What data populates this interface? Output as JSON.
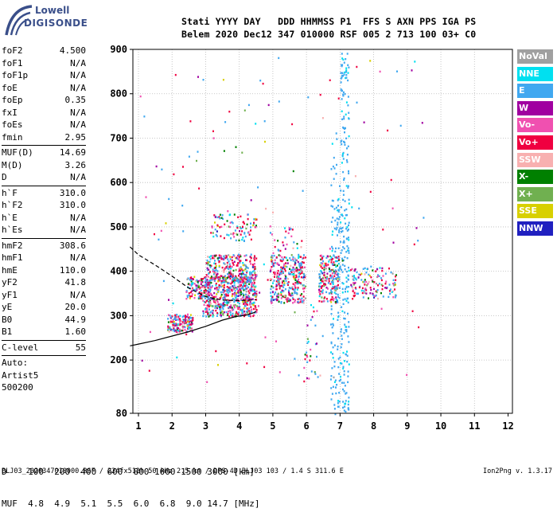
{
  "logo": {
    "line1": "Lowell",
    "line2": "DIGISONDE"
  },
  "header": {
    "line1": "Stati YYYY DAY   DDD HHMMSS P1  FFS S AXN PPS IGA PS",
    "line2": "Belem 2020 Dec12 347 010000 RSF 005 2 713 100 03+ C0"
  },
  "params_group1": [
    {
      "label": "foF2",
      "value": "4.500"
    },
    {
      "label": "foF1",
      "value": "N/A"
    },
    {
      "label": "foF1p",
      "value": "N/A"
    },
    {
      "label": "foE",
      "value": "N/A"
    },
    {
      "label": "foEp",
      "value": "0.35"
    },
    {
      "label": "fxI",
      "value": "N/A"
    },
    {
      "label": "foEs",
      "value": "N/A"
    },
    {
      "label": "fmin",
      "value": "2.95"
    }
  ],
  "params_group2": [
    {
      "label": "MUF(D)",
      "value": "14.69"
    },
    {
      "label": "M(D)",
      "value": "3.26"
    },
    {
      "label": "D",
      "value": "N/A"
    }
  ],
  "params_group3": [
    {
      "label": "h`F",
      "value": "310.0"
    },
    {
      "label": "h`F2",
      "value": "310.0"
    },
    {
      "label": "h`E",
      "value": "N/A"
    },
    {
      "label": "h`Es",
      "value": "N/A"
    }
  ],
  "params_group4": [
    {
      "label": "hmF2",
      "value": "308.6"
    },
    {
      "label": "hmF1",
      "value": "N/A"
    },
    {
      "label": "hmE",
      "value": "110.0"
    },
    {
      "label": "yF2",
      "value": "41.8"
    },
    {
      "label": "yF1",
      "value": "N/A"
    },
    {
      "label": "yE",
      "value": "20.0"
    },
    {
      "label": "B0",
      "value": "44.9"
    },
    {
      "label": "B1",
      "value": "1.60"
    }
  ],
  "params_group5": [
    {
      "label": "C-level",
      "value": "55"
    }
  ],
  "autoscaling": {
    "line1": "Auto:",
    "line2": "Artist5",
    "line3": "500200"
  },
  "legend": [
    {
      "label": "NoVal",
      "color": "#a0a0a0"
    },
    {
      "label": "NNE",
      "color": "#00e0f0"
    },
    {
      "label": "E",
      "color": "#40a8f0"
    },
    {
      "label": "W",
      "color": "#a000a0"
    },
    {
      "label": "Vo-",
      "color": "#f050b0"
    },
    {
      "label": "Vo+",
      "color": "#f00040"
    },
    {
      "label": "SSW",
      "color": "#f8b0b0"
    },
    {
      "label": "X-",
      "color": "#008000"
    },
    {
      "label": "X+",
      "color": "#70b050"
    },
    {
      "label": "SSE",
      "color": "#d8d000"
    },
    {
      "label": "NNW",
      "color": "#2020c0"
    }
  ],
  "distance_table": {
    "line1": "D    100  200  400  600  800 1000 1500 3000 [km]",
    "line2": "MUF  4.8  4.9  5.1  5.5  6.0  6.8  9.0 14.7 [MHz]"
  },
  "footer": {
    "left": "BLJ03_2020347010000.RSF / 224fx512h 50 kHz 2.5 km / DPS-4D BLJ03 103 / 1.4 S 311.6 E",
    "right": "Ion2Png v. 1.3.17"
  },
  "chart_data": {
    "type": "scatter",
    "title": "",
    "xlabel": "",
    "ylabel": "",
    "xlim": [
      0.75,
      12
    ],
    "ylim": [
      80,
      900
    ],
    "x_ticks": [
      1,
      2,
      3,
      4,
      5,
      6,
      7,
      8,
      9,
      10,
      11,
      12
    ],
    "y_ticks": [
      80,
      200,
      300,
      400,
      500,
      600,
      700,
      800,
      900
    ],
    "grid": "dotted",
    "legend_position": "right",
    "profile_line_solid": {
      "x": [
        0.75,
        1.0,
        1.5,
        2.0,
        2.5,
        3.0,
        3.5,
        3.9,
        4.2,
        4.45,
        4.5
      ],
      "y": [
        232,
        236,
        244,
        254,
        264,
        276,
        290,
        298,
        301,
        307,
        310
      ]
    },
    "profile_line_dashed": {
      "x": [
        0.75,
        1.0,
        1.5,
        2.0,
        2.5,
        3.0,
        3.5,
        4.0,
        4.3,
        4.5
      ],
      "y": [
        455,
        437,
        414,
        389,
        362,
        343,
        335,
        334,
        335,
        336
      ]
    },
    "echo_clusters": [
      {
        "x": [
          1.85,
          2.6
        ],
        "y": [
          265,
          305
        ],
        "n": 160
      },
      {
        "x": [
          2.4,
          2.9
        ],
        "y": [
          340,
          390
        ],
        "n": 90
      },
      {
        "x": [
          2.9,
          4.5
        ],
        "y": [
          300,
          390
        ],
        "n": 620
      },
      {
        "x": [
          3.0,
          4.5
        ],
        "y": [
          380,
          440
        ],
        "n": 260
      },
      {
        "x": [
          3.1,
          4.5
        ],
        "y": [
          470,
          530
        ],
        "n": 90
      },
      {
        "x": [
          4.9,
          5.95
        ],
        "y": [
          330,
          440
        ],
        "n": 300
      },
      {
        "x": [
          4.9,
          5.9
        ],
        "y": [
          370,
          510
        ],
        "n": 60
      },
      {
        "x": [
          6.35,
          6.95
        ],
        "y": [
          330,
          440
        ],
        "n": 180
      },
      {
        "x": [
          7.3,
          8.65
        ],
        "y": [
          340,
          410
        ],
        "n": 140
      },
      {
        "x": [
          7.0,
          7.25
        ],
        "y": [
          80,
          900
        ],
        "n": 220
      },
      {
        "x": [
          6.7,
          6.9
        ],
        "y": [
          80,
          720
        ],
        "n": 80
      },
      {
        "x": [
          6.9,
          7.0
        ],
        "y": [
          80,
          600
        ],
        "n": 50
      },
      {
        "x": [
          5.9,
          6.4
        ],
        "y": [
          150,
          330
        ],
        "n": 30
      },
      {
        "x": [
          1.0,
          9.5
        ],
        "y": [
          150,
          900
        ],
        "n": 130
      }
    ]
  }
}
